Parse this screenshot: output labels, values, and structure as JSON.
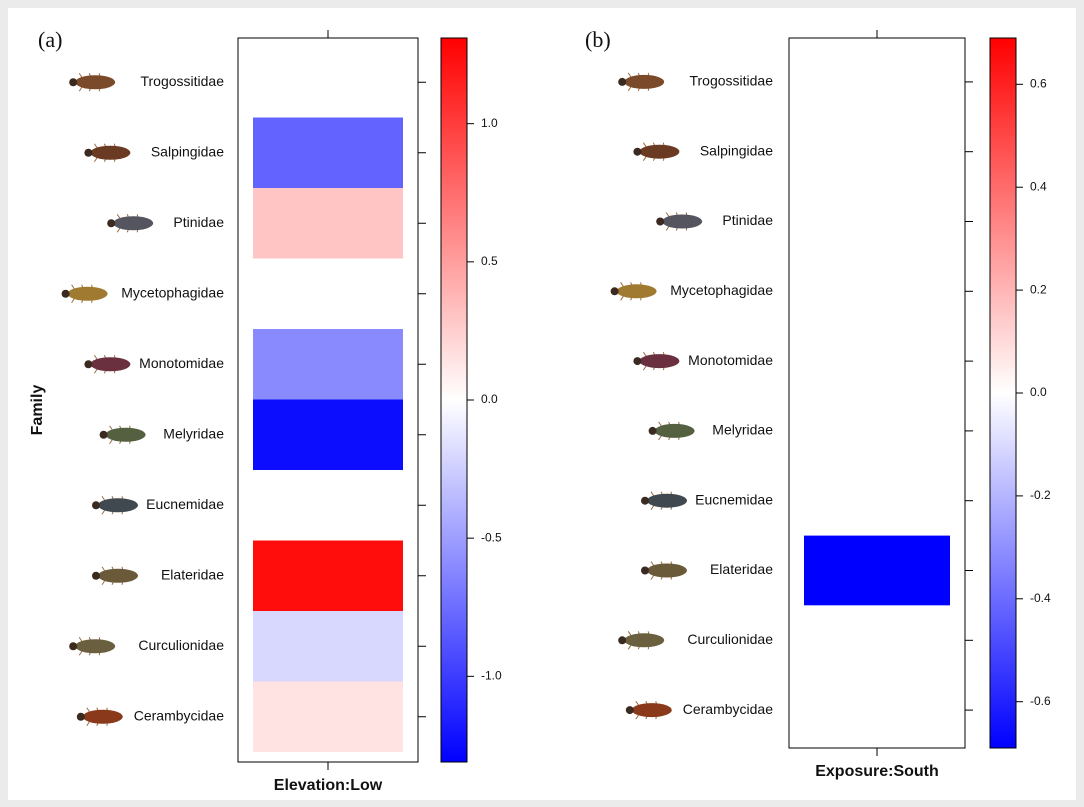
{
  "chart_data": [
    {
      "type": "heatmap",
      "panel_label": "(a)",
      "ylabel": "Family",
      "xlabel": "Elevation:Low",
      "categories": [
        "Trogossitidae",
        "Salpingidae",
        "Ptinidae",
        "Mycetophagidae",
        "Monotomidae",
        "Melyridae",
        "Eucnemidae",
        "Elateridae",
        "Curculionidae",
        "Cerambycidae"
      ],
      "values": [
        0,
        -0.8,
        0.3,
        0,
        -0.6,
        -1.25,
        0,
        1.25,
        -0.2,
        0.15
      ],
      "clim": [
        -1.31,
        1.31
      ],
      "cticks": [
        {
          "value": -1,
          "label": "-1.0"
        },
        {
          "value": -0.5,
          "label": "-0.5"
        },
        {
          "value": 0,
          "label": "0.0"
        },
        {
          "value": 0.5,
          "label": "0.5"
        },
        {
          "value": 1,
          "label": "1.0"
        }
      ],
      "colormap": [
        "#0000ff",
        "#ffffff",
        "#ff0000"
      ]
    },
    {
      "type": "heatmap",
      "panel_label": "(b)",
      "xlabel": "Exposure:South",
      "categories": [
        "Trogossitidae",
        "Salpingidae",
        "Ptinidae",
        "Mycetophagidae",
        "Monotomidae",
        "Melyridae",
        "Eucnemidae",
        "Elateridae",
        "Curculionidae",
        "Cerambycidae"
      ],
      "values": [
        0,
        0,
        0,
        0,
        0,
        0,
        0,
        -0.69,
        0,
        0
      ],
      "clim": [
        -0.69,
        0.69
      ],
      "cticks": [
        -0.6,
        -0.4,
        -0.2,
        {
          "value": 0,
          "label": "0.0"
        },
        0.2,
        0.4,
        0.6
      ],
      "colormap": [
        "#0000ff",
        "#ffffff",
        "#ff0000"
      ]
    }
  ]
}
